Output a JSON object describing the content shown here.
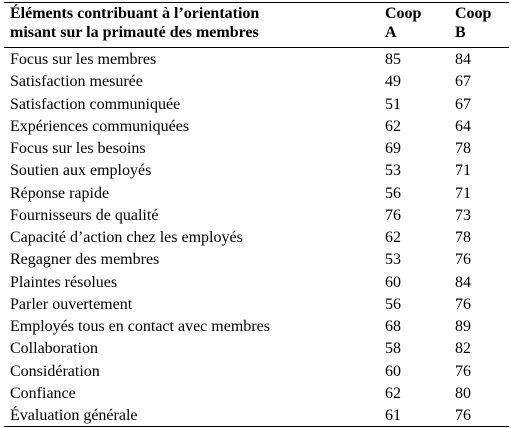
{
  "table": {
    "header": [
      [
        "Éléments contribuant à l’orientation",
        "misant sur la primauté des membres"
      ],
      [
        "Coop",
        "A"
      ],
      [
        "Coop",
        "B"
      ]
    ],
    "rows": [
      [
        "Focus sur les membres",
        85,
        84
      ],
      [
        "Satisfaction mesurée",
        49,
        67
      ],
      [
        "Satisfaction communiquée",
        51,
        67
      ],
      [
        "Expériences communiquées",
        62,
        64
      ],
      [
        "Focus sur les besoins",
        69,
        78
      ],
      [
        "Soutien aux employés",
        53,
        71
      ],
      [
        "Réponse rapide",
        56,
        71
      ],
      [
        "Fournisseurs de qualité",
        76,
        73
      ],
      [
        "Capacité d’action chez les employés",
        62,
        78
      ],
      [
        "Regagner des membres",
        53,
        76
      ],
      [
        "Plaintes résolues",
        60,
        84
      ],
      [
        "Parler ouvertement",
        56,
        76
      ],
      [
        "Employés tous en contact avec membres",
        68,
        89
      ],
      [
        "Collaboration",
        58,
        82
      ],
      [
        "Considération",
        60,
        76
      ],
      [
        "Confiance",
        62,
        80
      ],
      [
        "Évaluation générale",
        61,
        76
      ]
    ]
  }
}
